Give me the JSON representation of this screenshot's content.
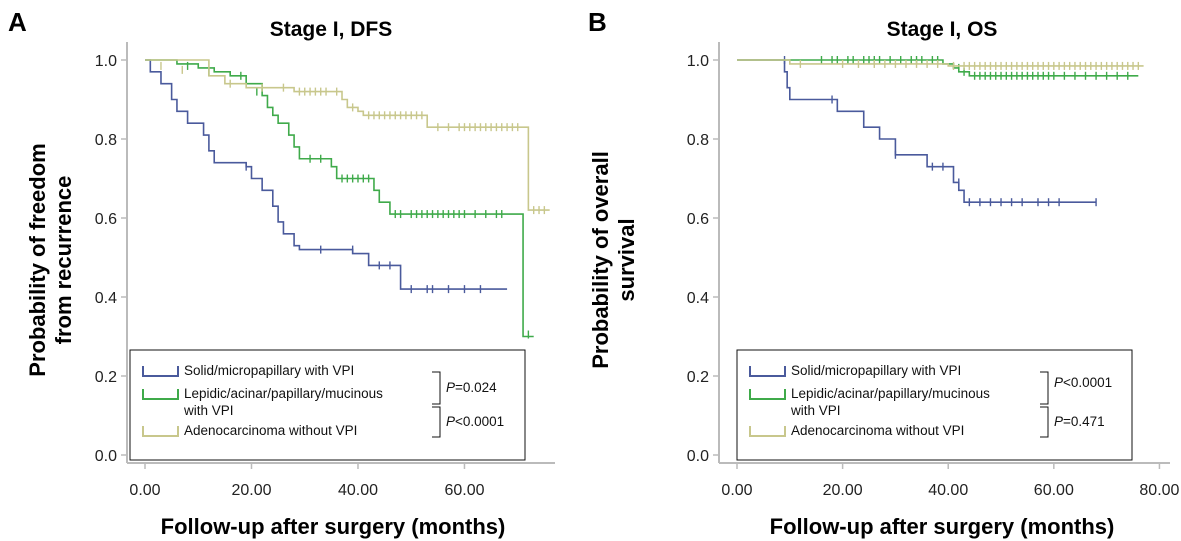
{
  "chart_data": [
    {
      "type": "line",
      "panel": "A",
      "title": "Stage I, DFS",
      "xlabel": "Follow-up after surgery (months)",
      "ylabel": [
        "Probability of freedom",
        "from recurrence"
      ],
      "xlim": [
        0,
        77
      ],
      "ylim": [
        0,
        1.05
      ],
      "xticks": [
        0,
        20,
        40,
        60
      ],
      "xtick_labels": [
        "0.00",
        "20.00",
        "40.00",
        "60.00"
      ],
      "yticks": [
        0,
        0.2,
        0.4,
        0.6,
        0.8,
        1.0
      ],
      "ytick_labels": [
        "0.0",
        "0.2",
        "0.4",
        "0.6",
        "0.8",
        "1.0"
      ],
      "grid": false,
      "legend_position": "bottom-right",
      "series": [
        {
          "name": "Solid/micropapillary with VPI",
          "color": "#4a5a9c",
          "steps": [
            [
              0,
              1.0
            ],
            [
              1,
              0.97
            ],
            [
              3,
              0.94
            ],
            [
              5,
              0.9
            ],
            [
              6,
              0.87
            ],
            [
              8,
              0.84
            ],
            [
              11,
              0.81
            ],
            [
              12,
              0.77
            ],
            [
              13,
              0.74
            ],
            [
              19,
              0.73
            ],
            [
              20,
              0.7
            ],
            [
              22,
              0.67
            ],
            [
              24,
              0.63
            ],
            [
              25,
              0.59
            ],
            [
              26,
              0.56
            ],
            [
              28,
              0.53
            ],
            [
              29,
              0.52
            ],
            [
              39,
              0.51
            ],
            [
              42,
              0.48
            ],
            [
              48,
              0.42
            ],
            [
              68,
              0.42
            ]
          ],
          "censor": [
            [
              19,
              0.73
            ],
            [
              33,
              0.52
            ],
            [
              39,
              0.52
            ],
            [
              44,
              0.48
            ],
            [
              46,
              0.48
            ],
            [
              50,
              0.42
            ],
            [
              53,
              0.42
            ],
            [
              54,
              0.42
            ],
            [
              57,
              0.42
            ],
            [
              60,
              0.42
            ],
            [
              63,
              0.42
            ]
          ]
        },
        {
          "name": "Lepidic/acinar/papillary/mucinous with VPI",
          "color": "#3faa4a",
          "steps": [
            [
              0,
              1.0
            ],
            [
              6,
              0.99
            ],
            [
              10,
              0.98
            ],
            [
              13,
              0.97
            ],
            [
              16,
              0.96
            ],
            [
              19,
              0.94
            ],
            [
              22,
              0.91
            ],
            [
              23,
              0.88
            ],
            [
              24,
              0.86
            ],
            [
              25,
              0.84
            ],
            [
              27,
              0.81
            ],
            [
              28,
              0.78
            ],
            [
              29,
              0.75
            ],
            [
              35,
              0.73
            ],
            [
              36,
              0.7
            ],
            [
              43,
              0.67
            ],
            [
              44,
              0.64
            ],
            [
              46,
              0.61
            ],
            [
              71,
              0.3
            ],
            [
              73,
              0.3
            ]
          ],
          "censor": [
            [
              8,
              0.985
            ],
            [
              12,
              0.97
            ],
            [
              18,
              0.96
            ],
            [
              21,
              0.92
            ],
            [
              31,
              0.75
            ],
            [
              33,
              0.75
            ],
            [
              37,
              0.7
            ],
            [
              38,
              0.7
            ],
            [
              39,
              0.7
            ],
            [
              40,
              0.7
            ],
            [
              41,
              0.7
            ],
            [
              42,
              0.7
            ],
            [
              47,
              0.61
            ],
            [
              48,
              0.61
            ],
            [
              50,
              0.61
            ],
            [
              51,
              0.61
            ],
            [
              52,
              0.61
            ],
            [
              53,
              0.61
            ],
            [
              54,
              0.61
            ],
            [
              55,
              0.61
            ],
            [
              56,
              0.61
            ],
            [
              57,
              0.61
            ],
            [
              58,
              0.61
            ],
            [
              59,
              0.61
            ],
            [
              60,
              0.61
            ],
            [
              62,
              0.61
            ],
            [
              64,
              0.61
            ],
            [
              66,
              0.61
            ],
            [
              67,
              0.61
            ],
            [
              72,
              0.305
            ]
          ]
        },
        {
          "name": "Adenocarcinoma without VPI",
          "color": "#c8c78c",
          "steps": [
            [
              0,
              1.0
            ],
            [
              12,
              0.96
            ],
            [
              15,
              0.94
            ],
            [
              19,
              0.93
            ],
            [
              28,
              0.92
            ],
            [
              37,
              0.9
            ],
            [
              38,
              0.88
            ],
            [
              40,
              0.87
            ],
            [
              41,
              0.86
            ],
            [
              53,
              0.83
            ],
            [
              72,
              0.62
            ],
            [
              76,
              0.62
            ]
          ],
          "censor": [
            [
              3,
              0.985
            ],
            [
              7,
              0.975
            ],
            [
              16,
              0.94
            ],
            [
              22,
              0.93
            ],
            [
              26,
              0.93
            ],
            [
              29,
              0.92
            ],
            [
              30,
              0.92
            ],
            [
              31,
              0.92
            ],
            [
              32,
              0.92
            ],
            [
              33,
              0.92
            ],
            [
              34,
              0.92
            ],
            [
              36,
              0.92
            ],
            [
              39,
              0.88
            ],
            [
              42,
              0.86
            ],
            [
              43,
              0.86
            ],
            [
              44,
              0.86
            ],
            [
              45,
              0.86
            ],
            [
              46,
              0.86
            ],
            [
              47,
              0.86
            ],
            [
              48,
              0.86
            ],
            [
              49,
              0.86
            ],
            [
              50,
              0.86
            ],
            [
              51,
              0.86
            ],
            [
              52,
              0.86
            ],
            [
              55,
              0.83
            ],
            [
              57,
              0.83
            ],
            [
              59,
              0.83
            ],
            [
              60,
              0.83
            ],
            [
              61,
              0.83
            ],
            [
              62,
              0.83
            ],
            [
              63,
              0.83
            ],
            [
              64,
              0.83
            ],
            [
              65,
              0.83
            ],
            [
              66,
              0.83
            ],
            [
              67,
              0.83
            ],
            [
              68,
              0.83
            ],
            [
              69,
              0.83
            ],
            [
              70,
              0.83
            ],
            [
              73,
              0.62
            ],
            [
              74,
              0.62
            ],
            [
              75,
              0.62
            ]
          ]
        }
      ],
      "pvalues": [
        "P=0.024",
        "P<0.0001"
      ]
    },
    {
      "type": "line",
      "panel": "B",
      "title": "Stage I, OS",
      "xlabel": "Follow-up after surgery (months)",
      "ylabel": [
        "Probability of overall",
        "survival"
      ],
      "xlim": [
        0,
        82
      ],
      "ylim": [
        0,
        1.05
      ],
      "xticks": [
        0,
        20,
        40,
        60,
        80
      ],
      "xtick_labels": [
        "0.00",
        "20.00",
        "40.00",
        "60.00",
        "80.00"
      ],
      "yticks": [
        0,
        0.2,
        0.4,
        0.6,
        0.8,
        1.0
      ],
      "ytick_labels": [
        "0.0",
        "0.2",
        "0.4",
        "0.6",
        "0.8",
        "1.0"
      ],
      "grid": false,
      "legend_position": "bottom-right",
      "series": [
        {
          "name": "Solid/micropapillary with VPI",
          "color": "#4a5a9c",
          "steps": [
            [
              0,
              1.0
            ],
            [
              9,
              0.97
            ],
            [
              9.5,
              0.93
            ],
            [
              10,
              0.9
            ],
            [
              19,
              0.87
            ],
            [
              24,
              0.83
            ],
            [
              27,
              0.8
            ],
            [
              30,
              0.76
            ],
            [
              36,
              0.73
            ],
            [
              41,
              0.69
            ],
            [
              42,
              0.67
            ],
            [
              43,
              0.64
            ],
            [
              68,
              0.64
            ]
          ],
          "censor": [
            [
              9,
              1.0
            ],
            [
              18,
              0.9
            ],
            [
              30,
              0.76
            ],
            [
              37,
              0.73
            ],
            [
              39,
              0.73
            ],
            [
              42,
              0.69
            ],
            [
              44,
              0.64
            ],
            [
              46,
              0.64
            ],
            [
              48,
              0.64
            ],
            [
              50,
              0.64
            ],
            [
              52,
              0.64
            ],
            [
              54,
              0.64
            ],
            [
              57,
              0.64
            ],
            [
              59,
              0.64
            ],
            [
              61,
              0.64
            ],
            [
              68,
              0.64
            ]
          ]
        },
        {
          "name": "Lepidic/acinar/papillary/mucinous with VPI",
          "color": "#3faa4a",
          "steps": [
            [
              0,
              1.0
            ],
            [
              39,
              0.99
            ],
            [
              41,
              0.98
            ],
            [
              42,
              0.97
            ],
            [
              44,
              0.96
            ],
            [
              76,
              0.96
            ]
          ],
          "censor": [
            [
              16,
              1.0
            ],
            [
              18,
              1.0
            ],
            [
              19,
              1.0
            ],
            [
              21,
              1.0
            ],
            [
              22,
              1.0
            ],
            [
              24,
              1.0
            ],
            [
              25,
              1.0
            ],
            [
              26,
              1.0
            ],
            [
              27,
              1.0
            ],
            [
              29,
              1.0
            ],
            [
              31,
              1.0
            ],
            [
              33,
              1.0
            ],
            [
              34,
              1.0
            ],
            [
              35,
              1.0
            ],
            [
              37,
              1.0
            ],
            [
              38,
              1.0
            ],
            [
              42,
              0.98
            ],
            [
              43,
              0.97
            ],
            [
              45,
              0.96
            ],
            [
              46,
              0.96
            ],
            [
              47,
              0.96
            ],
            [
              48,
              0.96
            ],
            [
              49,
              0.96
            ],
            [
              50,
              0.96
            ],
            [
              51,
              0.96
            ],
            [
              52,
              0.96
            ],
            [
              53,
              0.96
            ],
            [
              54,
              0.96
            ],
            [
              55,
              0.96
            ],
            [
              56,
              0.96
            ],
            [
              57,
              0.96
            ],
            [
              58,
              0.96
            ],
            [
              59,
              0.96
            ],
            [
              60,
              0.96
            ],
            [
              62,
              0.96
            ],
            [
              64,
              0.96
            ],
            [
              66,
              0.96
            ],
            [
              68,
              0.96
            ],
            [
              70,
              0.96
            ],
            [
              72,
              0.96
            ],
            [
              74,
              0.96
            ]
          ]
        },
        {
          "name": "Adenocarcinoma without VPI",
          "color": "#c8c78c",
          "steps": [
            [
              0,
              1.0
            ],
            [
              10,
              0.99
            ],
            [
              40,
              0.985
            ],
            [
              77,
              0.985
            ]
          ],
          "censor": [
            [
              12,
              0.99
            ],
            [
              20,
              0.99
            ],
            [
              23,
              0.99
            ],
            [
              26,
              0.99
            ],
            [
              28,
              0.99
            ],
            [
              30,
              0.99
            ],
            [
              32,
              0.99
            ],
            [
              34,
              0.99
            ],
            [
              36,
              0.99
            ],
            [
              38,
              0.99
            ],
            [
              41,
              0.985
            ],
            [
              43,
              0.985
            ],
            [
              44,
              0.985
            ],
            [
              45,
              0.985
            ],
            [
              46,
              0.985
            ],
            [
              47,
              0.985
            ],
            [
              48,
              0.985
            ],
            [
              49,
              0.985
            ],
            [
              50,
              0.985
            ],
            [
              51,
              0.985
            ],
            [
              52,
              0.985
            ],
            [
              53,
              0.985
            ],
            [
              54,
              0.985
            ],
            [
              55,
              0.985
            ],
            [
              56,
              0.985
            ],
            [
              57,
              0.985
            ],
            [
              58,
              0.985
            ],
            [
              59,
              0.985
            ],
            [
              60,
              0.985
            ],
            [
              61,
              0.985
            ],
            [
              62,
              0.985
            ],
            [
              63,
              0.985
            ],
            [
              64,
              0.985
            ],
            [
              65,
              0.985
            ],
            [
              66,
              0.985
            ],
            [
              67,
              0.985
            ],
            [
              68,
              0.985
            ],
            [
              69,
              0.985
            ],
            [
              70,
              0.985
            ],
            [
              71,
              0.985
            ],
            [
              72,
              0.985
            ],
            [
              73,
              0.985
            ],
            [
              74,
              0.985
            ],
            [
              75,
              0.985
            ],
            [
              76,
              0.985
            ]
          ]
        }
      ],
      "pvalues": [
        "P<0.0001",
        "P=0.471"
      ]
    }
  ]
}
